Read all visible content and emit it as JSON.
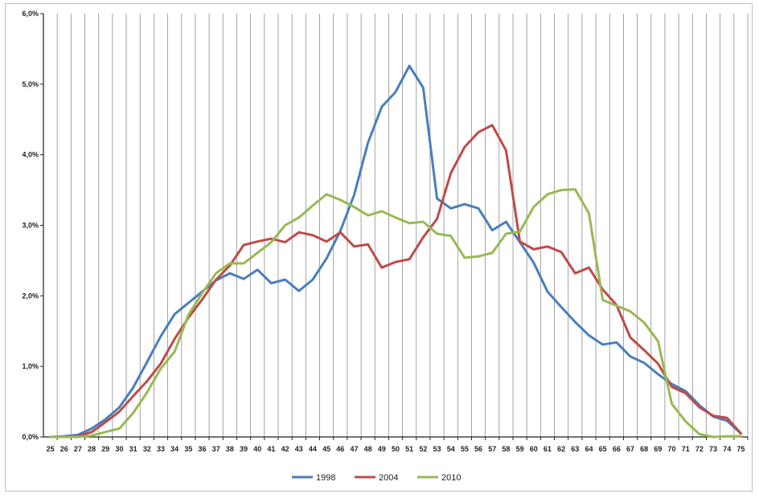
{
  "chart_data": {
    "type": "line",
    "title": "",
    "xlabel": "",
    "ylabel": "",
    "x": [
      25,
      26,
      27,
      28,
      29,
      30,
      31,
      32,
      33,
      34,
      35,
      36,
      37,
      38,
      39,
      40,
      41,
      42,
      43,
      44,
      45,
      46,
      47,
      48,
      49,
      50,
      51,
      52,
      53,
      54,
      55,
      56,
      57,
      58,
      59,
      60,
      61,
      62,
      63,
      64,
      65,
      66,
      67,
      68,
      69,
      70,
      71,
      72,
      73,
      74,
      75
    ],
    "y_ticks": [
      "0,0%",
      "1,0%",
      "2,0%",
      "3,0%",
      "4,0%",
      "5,0%",
      "6,0%"
    ],
    "ylim": [
      0,
      6
    ],
    "grid": "vertical",
    "legend_position": "bottom",
    "series": [
      {
        "name": "1998",
        "color": "#4a7ebb",
        "values": [
          0.0,
          0.01,
          0.03,
          0.12,
          0.25,
          0.42,
          0.7,
          1.06,
          1.43,
          1.74,
          1.9,
          2.06,
          2.22,
          2.32,
          2.24,
          2.37,
          2.18,
          2.23,
          2.07,
          2.23,
          2.53,
          2.92,
          3.43,
          4.17,
          4.68,
          4.89,
          5.26,
          4.95,
          3.38,
          3.24,
          3.3,
          3.24,
          2.93,
          3.05,
          2.76,
          2.47,
          2.06,
          1.84,
          1.63,
          1.44,
          1.31,
          1.34,
          1.14,
          1.05,
          0.89,
          0.75,
          0.65,
          0.45,
          0.29,
          0.23,
          0.05
        ]
      },
      {
        "name": "2004",
        "color": "#be4b48",
        "values": [
          0.0,
          0.0,
          0.01,
          0.07,
          0.21,
          0.36,
          0.58,
          0.79,
          1.04,
          1.39,
          1.69,
          1.95,
          2.23,
          2.43,
          2.72,
          2.77,
          2.81,
          2.76,
          2.9,
          2.86,
          2.77,
          2.9,
          2.7,
          2.73,
          2.4,
          2.48,
          2.52,
          2.83,
          3.09,
          3.74,
          4.11,
          4.32,
          4.42,
          4.06,
          2.77,
          2.66,
          2.7,
          2.62,
          2.32,
          2.4,
          2.09,
          1.87,
          1.41,
          1.23,
          1.04,
          0.71,
          0.62,
          0.42,
          0.3,
          0.27,
          0.05
        ]
      },
      {
        "name": "2010",
        "color": "#98b954",
        "values": [
          0.0,
          0.0,
          0.0,
          0.02,
          0.07,
          0.12,
          0.34,
          0.63,
          0.97,
          1.21,
          1.73,
          2.04,
          2.32,
          2.46,
          2.46,
          2.61,
          2.76,
          3.0,
          3.11,
          3.28,
          3.44,
          3.36,
          3.26,
          3.14,
          3.2,
          3.11,
          3.03,
          3.05,
          2.88,
          2.85,
          2.54,
          2.56,
          2.61,
          2.88,
          2.91,
          3.26,
          3.44,
          3.5,
          3.51,
          3.17,
          1.94,
          1.86,
          1.78,
          1.62,
          1.36,
          0.47,
          0.22,
          0.04,
          0.0,
          0.01,
          0.01
        ]
      }
    ]
  }
}
